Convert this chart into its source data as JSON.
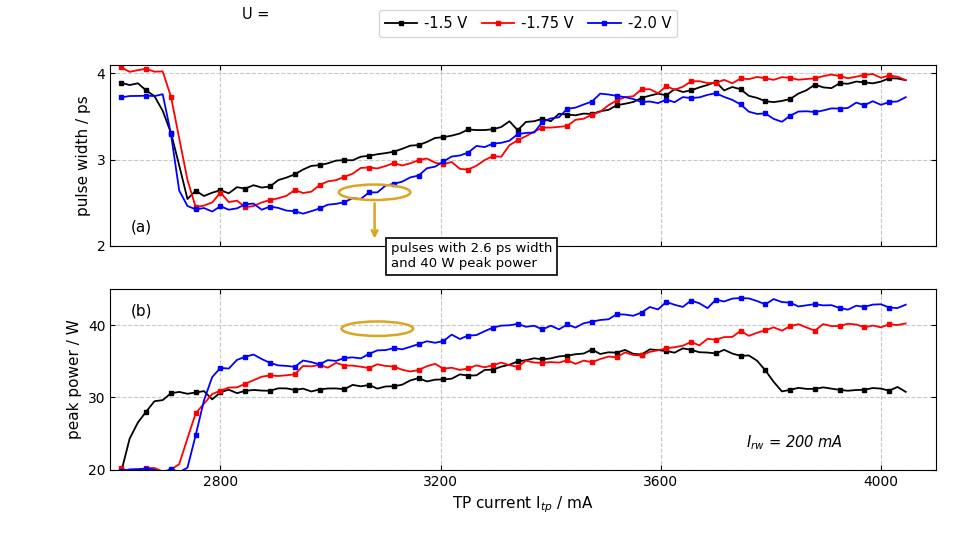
{
  "xlabel": "TP current I$_{tp}$ / mA",
  "ylabel_a": "pulse width / ps",
  "ylabel_b": "peak power / W",
  "legend_labels": [
    "-1.5 V",
    "-1.75 V",
    "-2.0 V"
  ],
  "legend_colors": [
    "black",
    "red",
    "blue"
  ],
  "annotation_text": "pulses with 2.6 ps width\nand 40 W peak power",
  "irw_label": "I$_{rw}$ = 200 mA",
  "label_a": "(a)",
  "label_b": "(b)",
  "xlim": [
    2600,
    4100
  ],
  "ylim_a": [
    2.0,
    4.1
  ],
  "ylim_b": [
    20,
    45
  ],
  "xticks": [
    2800,
    3200,
    3600,
    4000
  ],
  "yticks_a": [
    2,
    3,
    4
  ],
  "yticks_b": [
    20,
    30,
    40
  ],
  "grid_color": "#c8c8c8",
  "bg_color": "white",
  "marker": "s",
  "markersize": 3.5,
  "linewidth": 1.3
}
